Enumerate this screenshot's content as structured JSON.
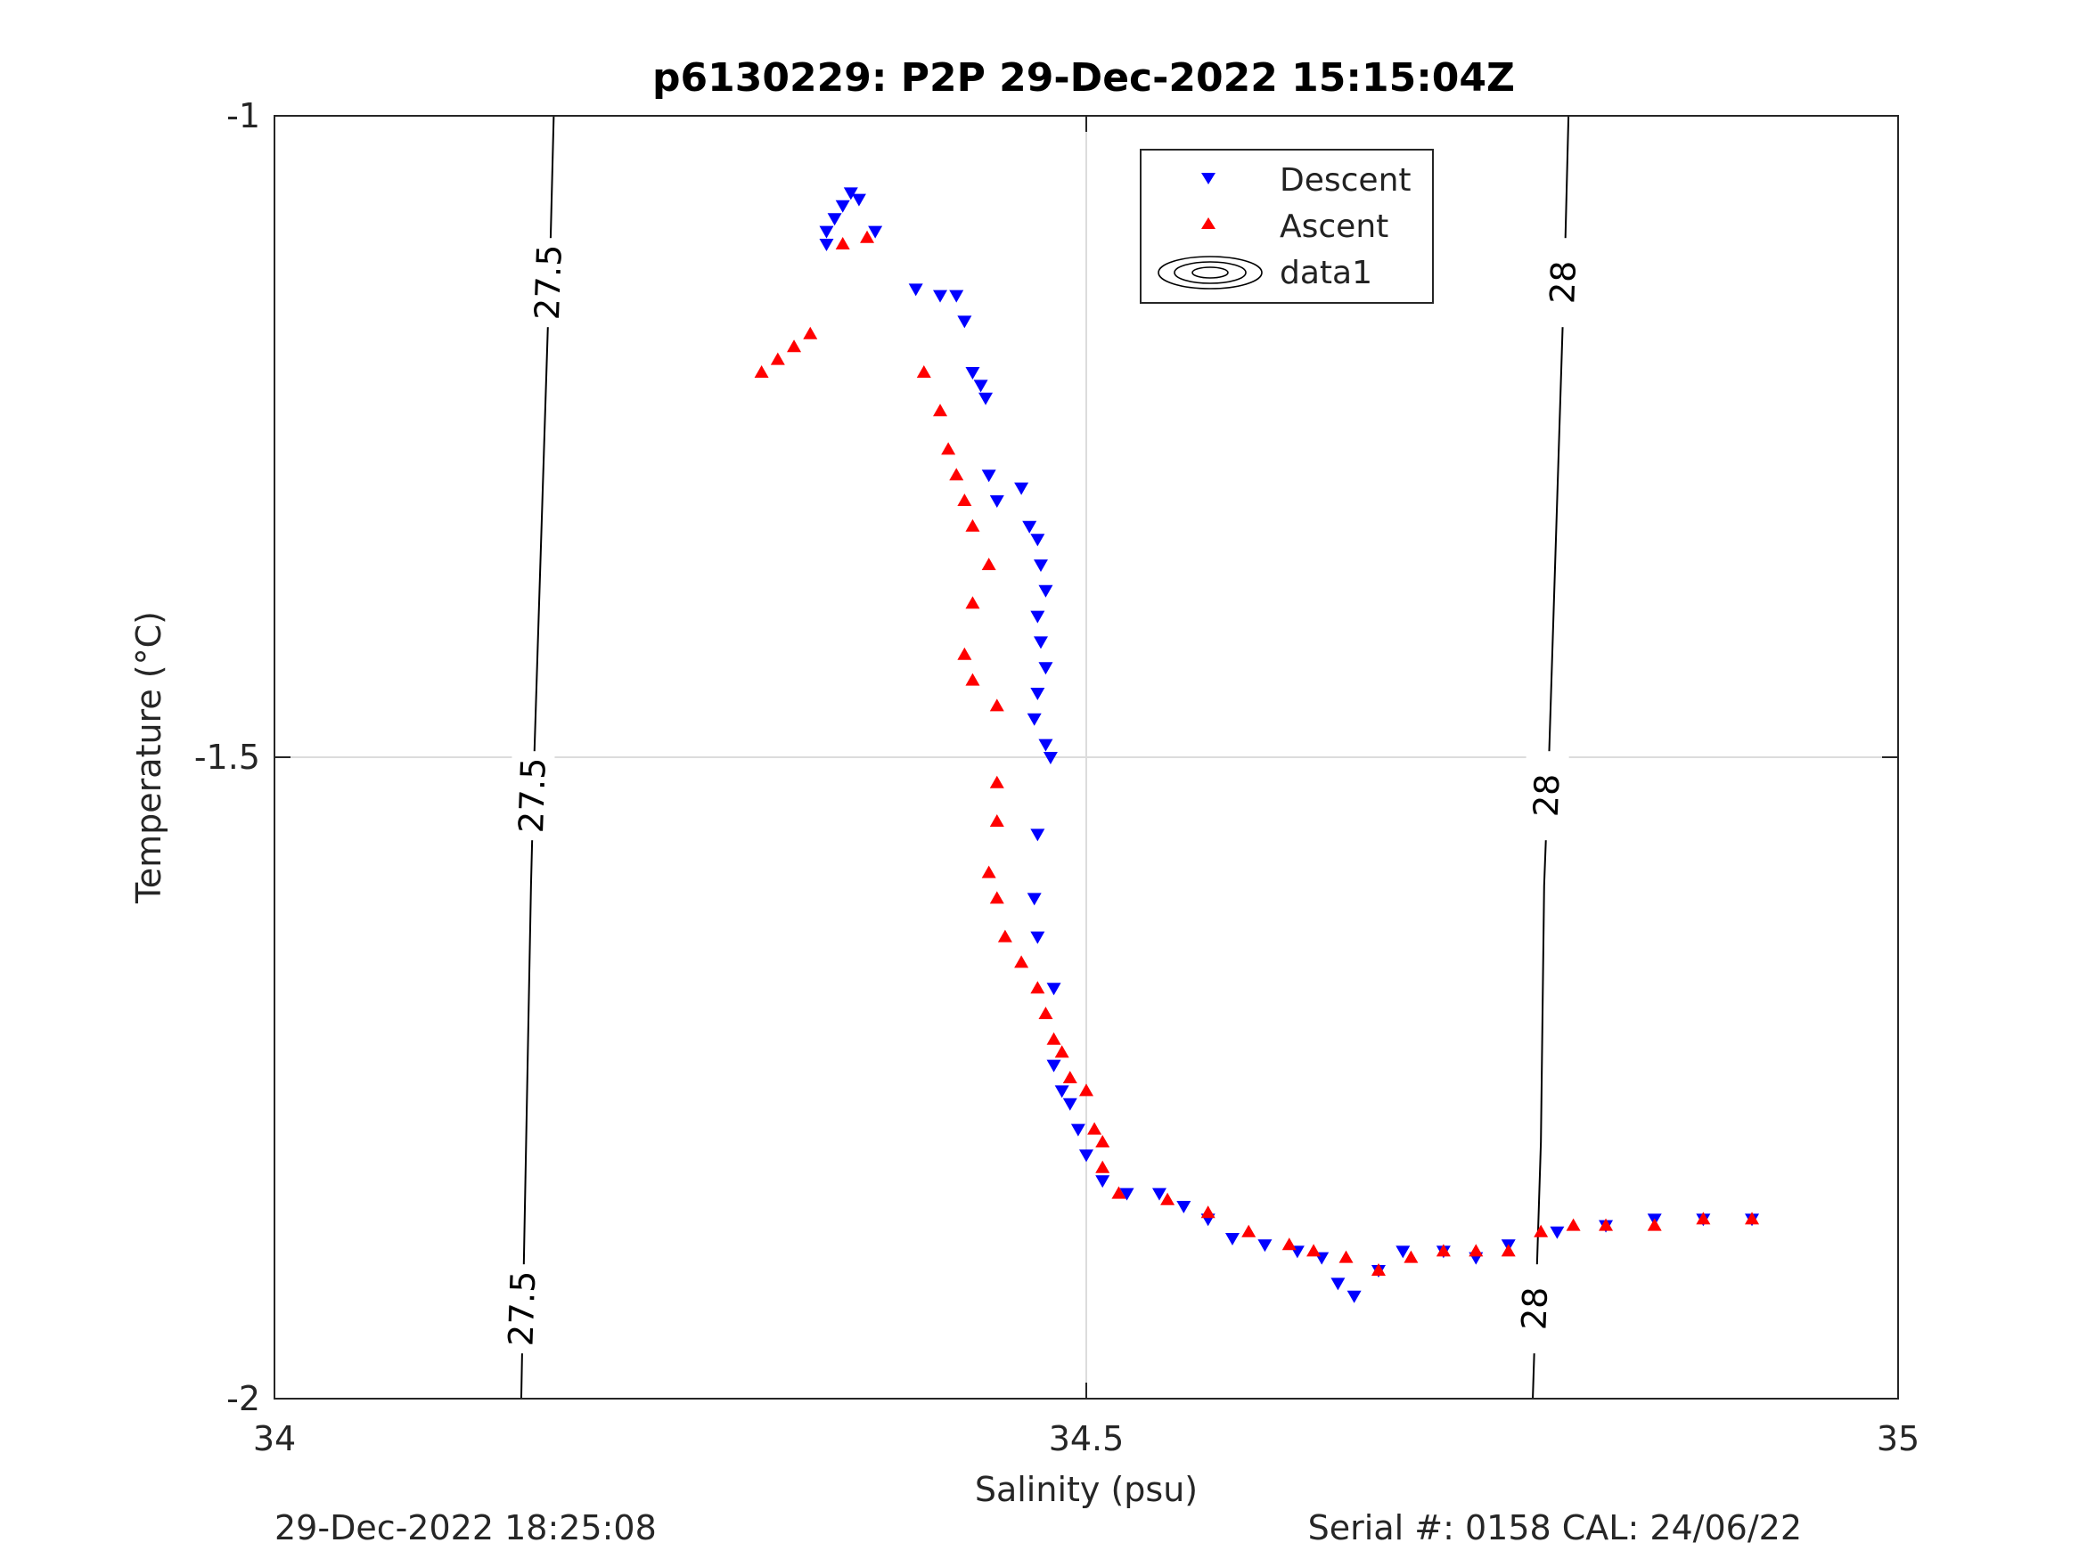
{
  "chart_data": {
    "type": "scatter",
    "title": "p6130229: P2P 29-Dec-2022 15:15:04Z",
    "xlabel": "Salinity (psu)",
    "ylabel": "Temperature (°C)",
    "xlim": [
      34,
      35
    ],
    "ylim": [
      -2,
      -1
    ],
    "xticks": [
      34,
      34.5,
      35
    ],
    "xtick_labels": [
      "34",
      "34.5",
      "35"
    ],
    "yticks": [
      -2,
      -1.5,
      -1
    ],
    "ytick_labels": [
      "-2",
      "-1.5",
      "-1"
    ],
    "grid": true,
    "legend_position": "top-center",
    "legend": [
      "Descent",
      "Ascent",
      "data1"
    ],
    "series": [
      {
        "name": "Descent",
        "marker": "triangle-down",
        "color": "#0000ff",
        "points": [
          [
            34.355,
            -1.06
          ],
          [
            34.36,
            -1.065
          ],
          [
            34.35,
            -1.07
          ],
          [
            34.345,
            -1.08
          ],
          [
            34.34,
            -1.09
          ],
          [
            34.34,
            -1.1
          ],
          [
            34.37,
            -1.09
          ],
          [
            34.395,
            -1.135
          ],
          [
            34.41,
            -1.14
          ],
          [
            34.42,
            -1.14
          ],
          [
            34.425,
            -1.16
          ],
          [
            34.43,
            -1.2
          ],
          [
            34.435,
            -1.21
          ],
          [
            34.438,
            -1.22
          ],
          [
            34.44,
            -1.28
          ],
          [
            34.445,
            -1.3
          ],
          [
            34.46,
            -1.29
          ],
          [
            34.465,
            -1.32
          ],
          [
            34.47,
            -1.33
          ],
          [
            34.472,
            -1.35
          ],
          [
            34.475,
            -1.37
          ],
          [
            34.47,
            -1.39
          ],
          [
            34.472,
            -1.41
          ],
          [
            34.475,
            -1.43
          ],
          [
            34.47,
            -1.45
          ],
          [
            34.468,
            -1.47
          ],
          [
            34.475,
            -1.49
          ],
          [
            34.478,
            -1.5
          ],
          [
            34.47,
            -1.56
          ],
          [
            34.468,
            -1.61
          ],
          [
            34.47,
            -1.64
          ],
          [
            34.48,
            -1.68
          ],
          [
            34.48,
            -1.74
          ],
          [
            34.485,
            -1.76
          ],
          [
            34.49,
            -1.77
          ],
          [
            34.495,
            -1.79
          ],
          [
            34.5,
            -1.81
          ],
          [
            34.51,
            -1.83
          ],
          [
            34.525,
            -1.84
          ],
          [
            34.545,
            -1.84
          ],
          [
            34.56,
            -1.85
          ],
          [
            34.575,
            -1.86
          ],
          [
            34.59,
            -1.875
          ],
          [
            34.61,
            -1.88
          ],
          [
            34.63,
            -1.885
          ],
          [
            34.645,
            -1.89
          ],
          [
            34.655,
            -1.91
          ],
          [
            34.665,
            -1.92
          ],
          [
            34.68,
            -1.9
          ],
          [
            34.695,
            -1.885
          ],
          [
            34.72,
            -1.885
          ],
          [
            34.74,
            -1.89
          ],
          [
            34.76,
            -1.88
          ],
          [
            34.79,
            -1.87
          ],
          [
            34.82,
            -1.865
          ],
          [
            34.85,
            -1.86
          ],
          [
            34.88,
            -1.86
          ],
          [
            34.91,
            -1.86
          ]
        ]
      },
      {
        "name": "Ascent",
        "marker": "triangle-up",
        "color": "#ff0000",
        "points": [
          [
            34.33,
            -1.17
          ],
          [
            34.32,
            -1.18
          ],
          [
            34.31,
            -1.19
          ],
          [
            34.3,
            -1.2
          ],
          [
            34.35,
            -1.1
          ],
          [
            34.365,
            -1.095
          ],
          [
            34.4,
            -1.2
          ],
          [
            34.41,
            -1.23
          ],
          [
            34.415,
            -1.26
          ],
          [
            34.42,
            -1.28
          ],
          [
            34.425,
            -1.3
          ],
          [
            34.43,
            -1.32
          ],
          [
            34.44,
            -1.35
          ],
          [
            34.43,
            -1.38
          ],
          [
            34.425,
            -1.42
          ],
          [
            34.43,
            -1.44
          ],
          [
            34.445,
            -1.46
          ],
          [
            34.445,
            -1.52
          ],
          [
            34.445,
            -1.55
          ],
          [
            34.44,
            -1.59
          ],
          [
            34.445,
            -1.61
          ],
          [
            34.45,
            -1.64
          ],
          [
            34.46,
            -1.66
          ],
          [
            34.47,
            -1.68
          ],
          [
            34.475,
            -1.7
          ],
          [
            34.48,
            -1.72
          ],
          [
            34.485,
            -1.73
          ],
          [
            34.49,
            -1.75
          ],
          [
            34.5,
            -1.76
          ],
          [
            34.505,
            -1.79
          ],
          [
            34.51,
            -1.8
          ],
          [
            34.51,
            -1.82
          ],
          [
            34.52,
            -1.84
          ],
          [
            34.55,
            -1.845
          ],
          [
            34.575,
            -1.855
          ],
          [
            34.6,
            -1.87
          ],
          [
            34.625,
            -1.88
          ],
          [
            34.64,
            -1.885
          ],
          [
            34.66,
            -1.89
          ],
          [
            34.68,
            -1.9
          ],
          [
            34.7,
            -1.89
          ],
          [
            34.72,
            -1.885
          ],
          [
            34.74,
            -1.885
          ],
          [
            34.76,
            -1.885
          ],
          [
            34.78,
            -1.87
          ],
          [
            34.8,
            -1.865
          ],
          [
            34.82,
            -1.865
          ],
          [
            34.85,
            -1.865
          ],
          [
            34.88,
            -1.86
          ],
          [
            34.91,
            -1.86
          ]
        ]
      }
    ],
    "contours": [
      {
        "label": "27.5",
        "line": [
          [
            34.152,
            -2
          ],
          [
            34.155,
            -1.8
          ],
          [
            34.158,
            -1.6
          ],
          [
            34.16,
            -1.5
          ],
          [
            34.165,
            -1.3
          ],
          [
            34.17,
            -1.1
          ],
          [
            34.172,
            -1
          ]
        ]
      },
      {
        "label": "28",
        "line": [
          [
            34.775,
            -2
          ],
          [
            34.78,
            -1.8
          ],
          [
            34.782,
            -1.6
          ],
          [
            34.785,
            -1.5
          ],
          [
            34.79,
            -1.3
          ],
          [
            34.795,
            -1.1
          ],
          [
            34.797,
            -1
          ]
        ]
      }
    ]
  },
  "footer": {
    "left": "29-Dec-2022 18:25:08",
    "right": "Serial #: 0158  CAL: 24/06/22"
  }
}
